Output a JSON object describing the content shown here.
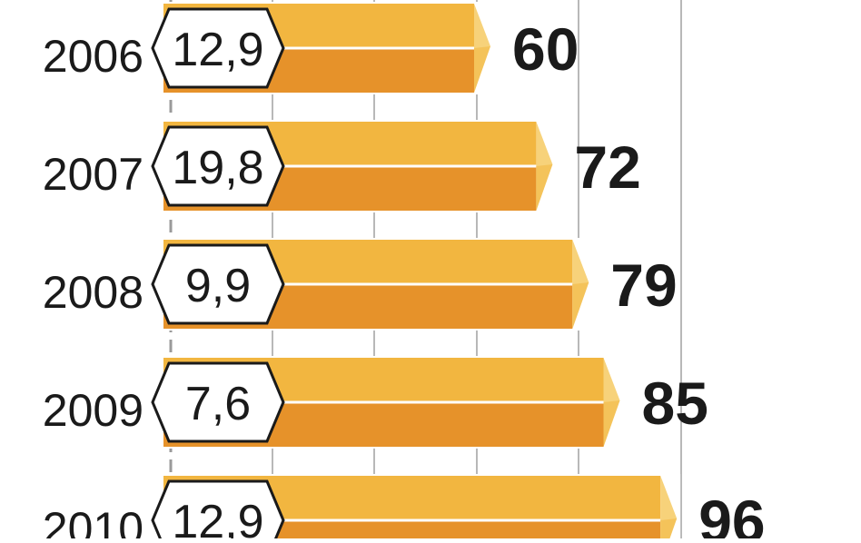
{
  "chart_data": {
    "type": "bar",
    "orientation": "horizontal",
    "categories": [
      "2006",
      "2007",
      "2008",
      "2009",
      "2010"
    ],
    "values": [
      60,
      72,
      79,
      85,
      96
    ],
    "secondary_values_labels": [
      "12,9",
      "19,8",
      "9,9",
      "7,6",
      "12,9"
    ],
    "grid": true,
    "colors": {
      "bar_top": "#F2B640",
      "bar_bottom": "#E6922A",
      "bar_cap": "#F7D27A",
      "divider": "#FFFFFF",
      "badge_fill": "#FFFFFF",
      "badge_stroke": "#1A1A1A",
      "grid": "#9A9A9A",
      "text": "#1A1A1A"
    }
  }
}
